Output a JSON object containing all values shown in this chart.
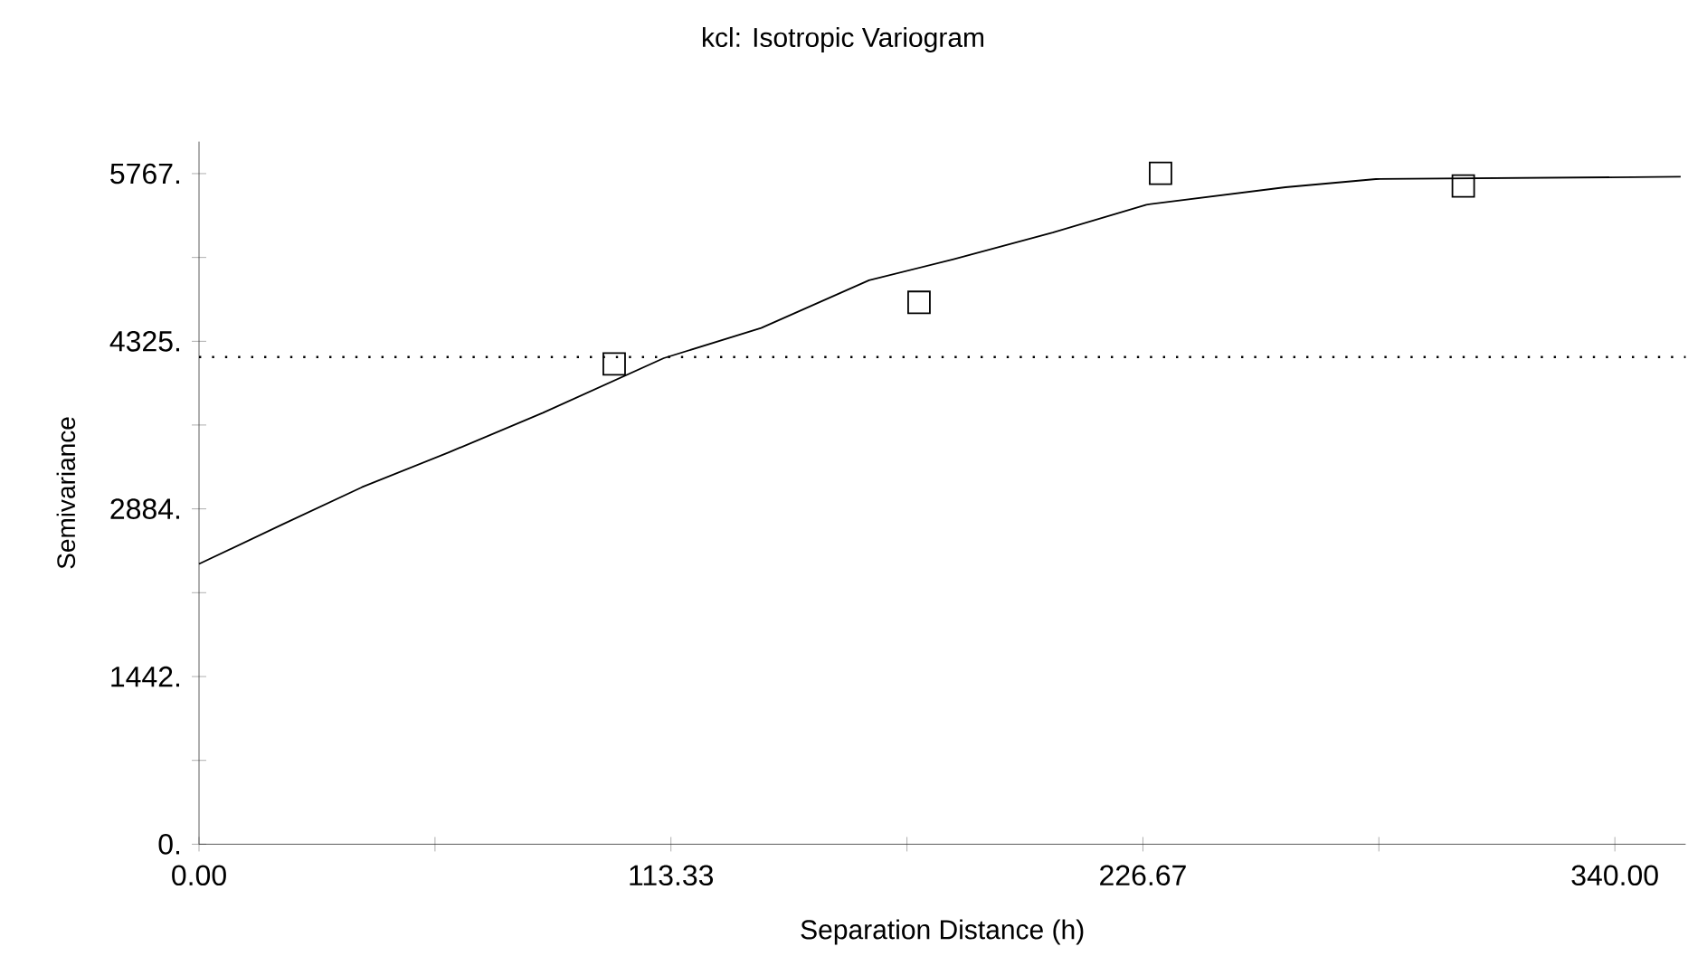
{
  "chart_data": {
    "type": "scatter",
    "title": "kcl: Isotropic Variogram",
    "xlabel": "Separation Distance (h)",
    "ylabel": "Semivariance",
    "xlim": [
      0,
      357
    ],
    "ylim": [
      0,
      6042
    ],
    "xticks": [
      {
        "value": 0,
        "label": "0.00"
      },
      {
        "value": 56.67,
        "label": null
      },
      {
        "value": 113.33,
        "label": "113.33"
      },
      {
        "value": 170,
        "label": null
      },
      {
        "value": 226.67,
        "label": "226.67"
      },
      {
        "value": 283.33,
        "label": null
      },
      {
        "value": 340,
        "label": "340.00"
      }
    ],
    "yticks": [
      {
        "value": 0,
        "label": "0."
      },
      {
        "value": 721,
        "label": null
      },
      {
        "value": 1442,
        "label": "1442."
      },
      {
        "value": 2163,
        "label": null
      },
      {
        "value": 2884,
        "label": "2884."
      },
      {
        "value": 3605,
        "label": null
      },
      {
        "value": 4325,
        "label": "4325."
      },
      {
        "value": 5046,
        "label": null
      },
      {
        "value": 5767,
        "label": "5767."
      }
    ],
    "ref_lines": [
      {
        "axis": "y",
        "value": 4190,
        "line_style": "dotted",
        "color": "#000000"
      }
    ],
    "series": [
      {
        "type": "line",
        "color": "#000000",
        "line_style": "solid",
        "marker": "none",
        "x": [
          0,
          20,
          39.1,
          60,
          82.6,
          111.6,
          135,
          160.9,
          181.2,
          205,
          227.5,
          260.9,
          282.6,
          355.8
        ],
        "values": [
          2410,
          2750,
          3070,
          3370,
          3710,
          4180,
          4440,
          4850,
          5030,
          5260,
          5500,
          5650,
          5720,
          5740
        ]
      },
      {
        "color": "#000000",
        "marker": "square",
        "x": [
          99.7,
          172.9,
          230.9,
          303.6
        ],
        "values": [
          4130,
          4660,
          5770,
          5660
        ]
      }
    ]
  }
}
